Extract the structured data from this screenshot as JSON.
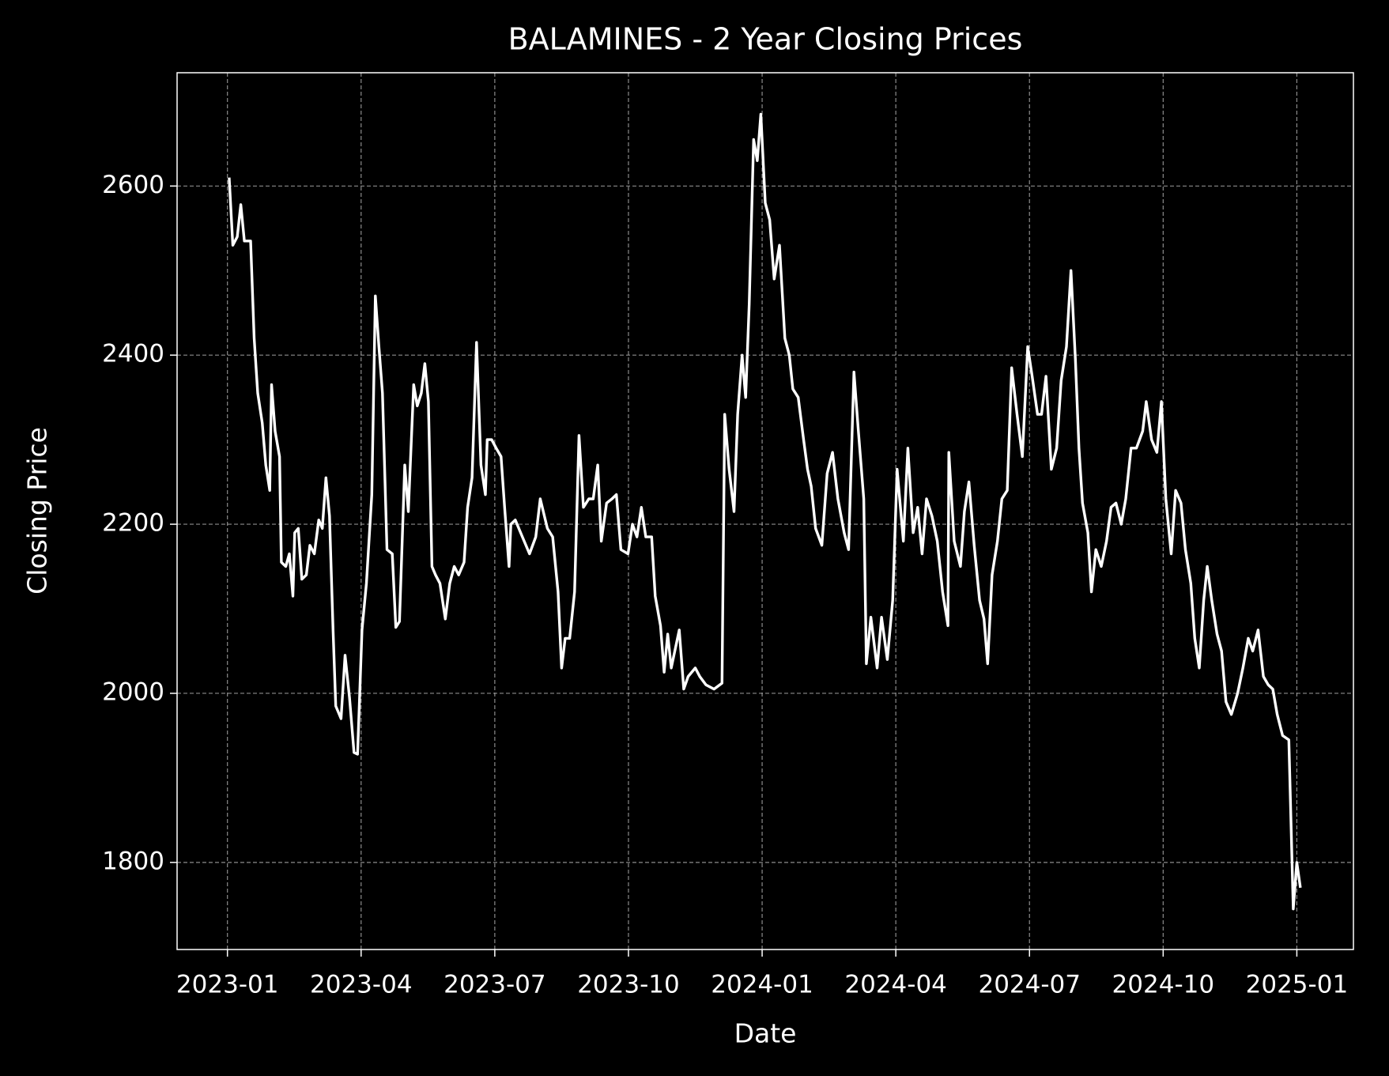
{
  "chart_data": {
    "type": "line",
    "title": "BALAMINES - 2 Year Closing Prices",
    "x_label": "Date",
    "y_label": "Closing Price",
    "color": "#ffffff",
    "grid": true,
    "xlim": [
      -1.13,
      25.27
    ],
    "xticks": [
      {
        "value": 0,
        "label": "2023-01"
      },
      {
        "value": 3,
        "label": "2023-04"
      },
      {
        "value": 6,
        "label": "2023-07"
      },
      {
        "value": 9,
        "label": "2023-10"
      },
      {
        "value": 12,
        "label": "2024-01"
      },
      {
        "value": 15,
        "label": "2024-04"
      },
      {
        "value": 18,
        "label": "2024-07"
      },
      {
        "value": 21,
        "label": "2024-10"
      },
      {
        "value": 24,
        "label": "2025-01"
      }
    ],
    "ylim": [
      1697,
      2734
    ],
    "yticks": [
      1800,
      2000,
      2200,
      2400,
      2600
    ],
    "x": [
      0.04,
      0.12,
      0.22,
      0.3,
      0.38,
      0.52,
      0.6,
      0.68,
      0.78,
      0.86,
      0.95,
      0.99,
      1.07,
      1.17,
      1.21,
      1.31,
      1.39,
      1.47,
      1.51,
      1.59,
      1.67,
      1.77,
      1.85,
      1.95,
      2.05,
      2.13,
      2.21,
      2.29,
      2.37,
      2.43,
      2.55,
      2.64,
      2.74,
      2.84,
      2.92,
      3.02,
      3.12,
      3.24,
      3.32,
      3.4,
      3.48,
      3.58,
      3.7,
      3.78,
      3.86,
      3.98,
      4.06,
      4.18,
      4.26,
      4.35,
      4.43,
      4.51,
      4.59,
      4.67,
      4.77,
      4.89,
      4.99,
      5.09,
      5.19,
      5.31,
      5.39,
      5.49,
      5.59,
      5.69,
      5.79,
      5.83,
      5.93,
      6.03,
      6.14,
      6.22,
      6.32,
      6.36,
      6.46,
      6.62,
      6.78,
      6.92,
      7.02,
      7.18,
      7.3,
      7.42,
      7.5,
      7.58,
      7.68,
      7.79,
      7.89,
      7.99,
      8.11,
      8.21,
      8.31,
      8.39,
      8.51,
      8.63,
      8.73,
      8.83,
      8.99,
      9.09,
      9.19,
      9.29,
      9.39,
      9.52,
      9.6,
      9.72,
      9.8,
      9.88,
      9.96,
      10.14,
      10.24,
      10.34,
      10.5,
      10.6,
      10.74,
      10.92,
      11.1,
      11.16,
      11.26,
      11.37,
      11.45,
      11.55,
      11.63,
      11.71,
      11.81,
      11.89,
      11.97,
      12.07,
      12.17,
      12.27,
      12.39,
      12.51,
      12.61,
      12.69,
      12.81,
      12.93,
      13.02,
      13.1,
      13.2,
      13.34,
      13.46,
      13.58,
      13.7,
      13.84,
      13.94,
      14.06,
      14.16,
      14.28,
      14.34,
      14.44,
      14.58,
      14.68,
      14.81,
      14.93,
      15.03,
      15.17,
      15.27,
      15.39,
      15.49,
      15.59,
      15.69,
      15.81,
      15.93,
      16.05,
      16.17,
      16.19,
      16.31,
      16.45,
      16.54,
      16.64,
      16.76,
      16.88,
      16.98,
      17.06,
      17.16,
      17.28,
      17.38,
      17.5,
      17.6,
      17.72,
      17.84,
      17.96,
      18.06,
      18.18,
      18.27,
      18.37,
      18.49,
      18.61,
      18.71,
      18.83,
      18.93,
      19.03,
      19.11,
      19.19,
      19.31,
      19.39,
      19.49,
      19.61,
      19.73,
      19.83,
      19.94,
      20.06,
      20.16,
      20.28,
      20.4,
      20.54,
      20.62,
      20.74,
      20.86,
      20.96,
      21.06,
      21.18,
      21.28,
      21.4,
      21.5,
      21.62,
      21.71,
      21.81,
      21.91,
      21.99,
      22.09,
      22.21,
      22.31,
      22.41,
      22.53,
      22.67,
      22.79,
      22.91,
      23.01,
      23.13,
      23.25,
      23.36,
      23.46,
      23.56,
      23.68,
      23.82,
      23.92,
      24.0,
      24.08
    ],
    "values": [
      2610,
      2530,
      2540,
      2578,
      2535,
      2535,
      2420,
      2355,
      2320,
      2270,
      2240,
      2365,
      2310,
      2280,
      2155,
      2150,
      2165,
      2115,
      2190,
      2195,
      2135,
      2140,
      2175,
      2165,
      2205,
      2195,
      2255,
      2210,
      2075,
      1985,
      1970,
      2045,
      1995,
      1930,
      1928,
      2075,
      2130,
      2235,
      2470,
      2410,
      2355,
      2170,
      2165,
      2078,
      2085,
      2270,
      2215,
      2365,
      2340,
      2355,
      2390,
      2345,
      2150,
      2140,
      2130,
      2088,
      2130,
      2150,
      2140,
      2155,
      2220,
      2255,
      2415,
      2270,
      2235,
      2300,
      2300,
      2290,
      2280,
      2220,
      2150,
      2200,
      2205,
      2185,
      2165,
      2185,
      2230,
      2195,
      2185,
      2120,
      2030,
      2065,
      2065,
      2120,
      2305,
      2220,
      2230,
      2230,
      2270,
      2180,
      2225,
      2230,
      2235,
      2170,
      2165,
      2200,
      2185,
      2220,
      2185,
      2185,
      2115,
      2080,
      2025,
      2070,
      2030,
      2075,
      2005,
      2020,
      2030,
      2020,
      2010,
      2005,
      2012,
      2330,
      2265,
      2215,
      2330,
      2400,
      2350,
      2460,
      2655,
      2630,
      2685,
      2580,
      2560,
      2490,
      2530,
      2420,
      2400,
      2360,
      2350,
      2300,
      2265,
      2245,
      2195,
      2175,
      2260,
      2285,
      2230,
      2190,
      2170,
      2380,
      2310,
      2230,
      2035,
      2090,
      2030,
      2090,
      2040,
      2110,
      2265,
      2180,
      2290,
      2190,
      2220,
      2165,
      2230,
      2210,
      2180,
      2120,
      2080,
      2285,
      2180,
      2150,
      2215,
      2250,
      2175,
      2110,
      2088,
      2035,
      2140,
      2180,
      2230,
      2240,
      2385,
      2330,
      2280,
      2410,
      2375,
      2330,
      2330,
      2375,
      2265,
      2290,
      2370,
      2410,
      2500,
      2395,
      2290,
      2225,
      2190,
      2120,
      2170,
      2150,
      2180,
      2220,
      2225,
      2200,
      2230,
      2290,
      2290,
      2310,
      2345,
      2300,
      2285,
      2345,
      2230,
      2165,
      2240,
      2225,
      2170,
      2130,
      2065,
      2030,
      2110,
      2150,
      2110,
      2070,
      2050,
      1990,
      1975,
      2000,
      2030,
      2065,
      2050,
      2075,
      2020,
      2010,
      2005,
      1975,
      1950,
      1945,
      1745,
      1800,
      1770
    ]
  }
}
